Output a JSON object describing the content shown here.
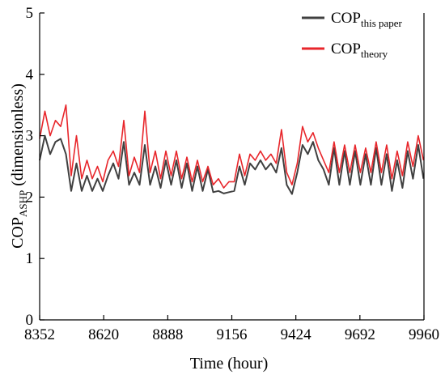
{
  "chart_data": {
    "type": "line",
    "xlabel": "Time (hour)",
    "ylabel_main": "COP",
    "ylabel_sub": "ASHP",
    "ylabel_tail": " (dimensionless)",
    "xlim": [
      8352,
      9960
    ],
    "ylim": [
      0,
      5
    ],
    "xticks": [
      8352,
      8620,
      8888,
      9156,
      9424,
      9692,
      9960
    ],
    "yticks": [
      0,
      1,
      2,
      3,
      4,
      5
    ],
    "legend_position": "top-right",
    "grid": false,
    "x": [
      8352,
      8374,
      8396,
      8418,
      8440,
      8462,
      8484,
      8506,
      8528,
      8550,
      8572,
      8594,
      8616,
      8638,
      8660,
      8682,
      8704,
      8726,
      8748,
      8770,
      8792,
      8814,
      8836,
      8858,
      8880,
      8902,
      8924,
      8946,
      8968,
      8990,
      9012,
      9034,
      9056,
      9078,
      9100,
      9122,
      9144,
      9166,
      9188,
      9210,
      9232,
      9254,
      9276,
      9298,
      9320,
      9342,
      9364,
      9386,
      9408,
      9430,
      9452,
      9474,
      9496,
      9518,
      9540,
      9562,
      9584,
      9606,
      9628,
      9650,
      9672,
      9694,
      9716,
      9738,
      9760,
      9782,
      9804,
      9826,
      9848,
      9870,
      9892,
      9914,
      9936,
      9958
    ],
    "series": [
      {
        "name_main": "COP",
        "name_sub": "this paper",
        "color": "#404040",
        "values": [
          2.6,
          3.0,
          2.7,
          2.9,
          2.95,
          2.7,
          2.1,
          2.55,
          2.1,
          2.35,
          2.1,
          2.3,
          2.1,
          2.35,
          2.55,
          2.3,
          2.9,
          2.2,
          2.4,
          2.2,
          2.85,
          2.2,
          2.5,
          2.15,
          2.6,
          2.2,
          2.6,
          2.15,
          2.55,
          2.1,
          2.5,
          2.1,
          2.45,
          2.08,
          2.1,
          2.06,
          2.08,
          2.1,
          2.5,
          2.2,
          2.55,
          2.45,
          2.6,
          2.45,
          2.55,
          2.4,
          2.8,
          2.2,
          2.05,
          2.4,
          2.85,
          2.7,
          2.9,
          2.6,
          2.45,
          2.2,
          2.8,
          2.2,
          2.75,
          2.2,
          2.75,
          2.2,
          2.7,
          2.2,
          2.8,
          2.2,
          2.7,
          2.1,
          2.6,
          2.15,
          2.75,
          2.3,
          2.85,
          2.3
        ]
      },
      {
        "name_main": "COP",
        "name_sub": "theory",
        "color": "#e8262b",
        "values": [
          2.95,
          3.4,
          3.0,
          3.25,
          3.15,
          3.5,
          2.35,
          3.0,
          2.3,
          2.6,
          2.3,
          2.5,
          2.25,
          2.6,
          2.75,
          2.5,
          3.25,
          2.35,
          2.65,
          2.4,
          3.4,
          2.4,
          2.75,
          2.3,
          2.75,
          2.35,
          2.75,
          2.3,
          2.65,
          2.25,
          2.6,
          2.25,
          2.5,
          2.2,
          2.3,
          2.15,
          2.25,
          2.25,
          2.7,
          2.35,
          2.7,
          2.6,
          2.75,
          2.6,
          2.7,
          2.55,
          3.1,
          2.4,
          2.2,
          2.55,
          3.15,
          2.9,
          3.05,
          2.8,
          2.6,
          2.4,
          2.9,
          2.4,
          2.85,
          2.4,
          2.85,
          2.4,
          2.8,
          2.4,
          2.9,
          2.4,
          2.85,
          2.3,
          2.75,
          2.35,
          2.9,
          2.5,
          3.0,
          2.6
        ]
      }
    ]
  }
}
